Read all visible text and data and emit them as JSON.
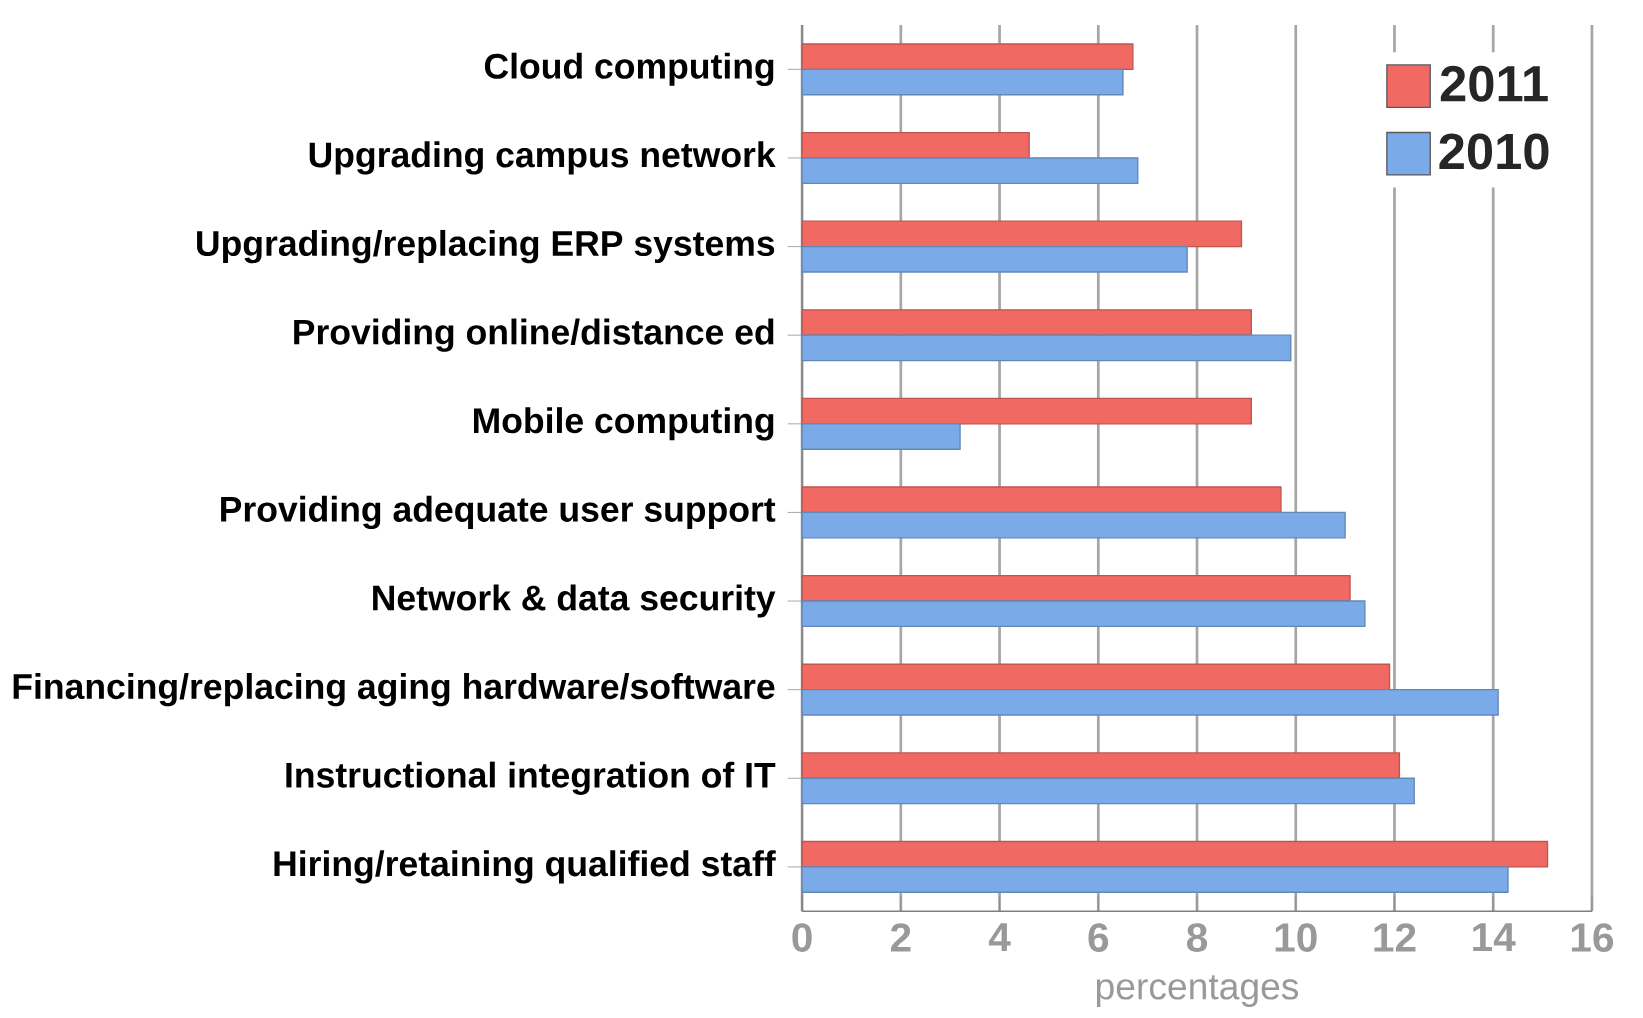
{
  "chart_data": {
    "type": "bar",
    "orientation": "horizontal",
    "xlabel": "percentages",
    "categories": [
      "Cloud computing",
      "Upgrading campus network",
      "Upgrading/replacing ERP systems",
      "Providing online/distance ed",
      "Mobile computing",
      "Providing adequate user support",
      "Network & data security",
      "Financing/replacing aging hardware/software",
      "Instructional integration of IT",
      "Hiring/retaining qualified staff"
    ],
    "series": [
      {
        "name": "2011",
        "color": "#f06a63",
        "values": [
          6.7,
          4.6,
          8.9,
          9.1,
          9.1,
          9.7,
          11.1,
          11.9,
          12.1,
          15.1
        ]
      },
      {
        "name": "2010",
        "color": "#7aaae8",
        "values": [
          6.5,
          6.8,
          7.8,
          9.9,
          3.2,
          11.0,
          11.4,
          14.1,
          12.4,
          14.3
        ]
      }
    ],
    "xlim": [
      0,
      16
    ],
    "xticks": [
      0,
      2,
      4,
      6,
      8,
      10,
      12,
      14,
      16
    ],
    "grid": "x",
    "legend": "top right"
  }
}
